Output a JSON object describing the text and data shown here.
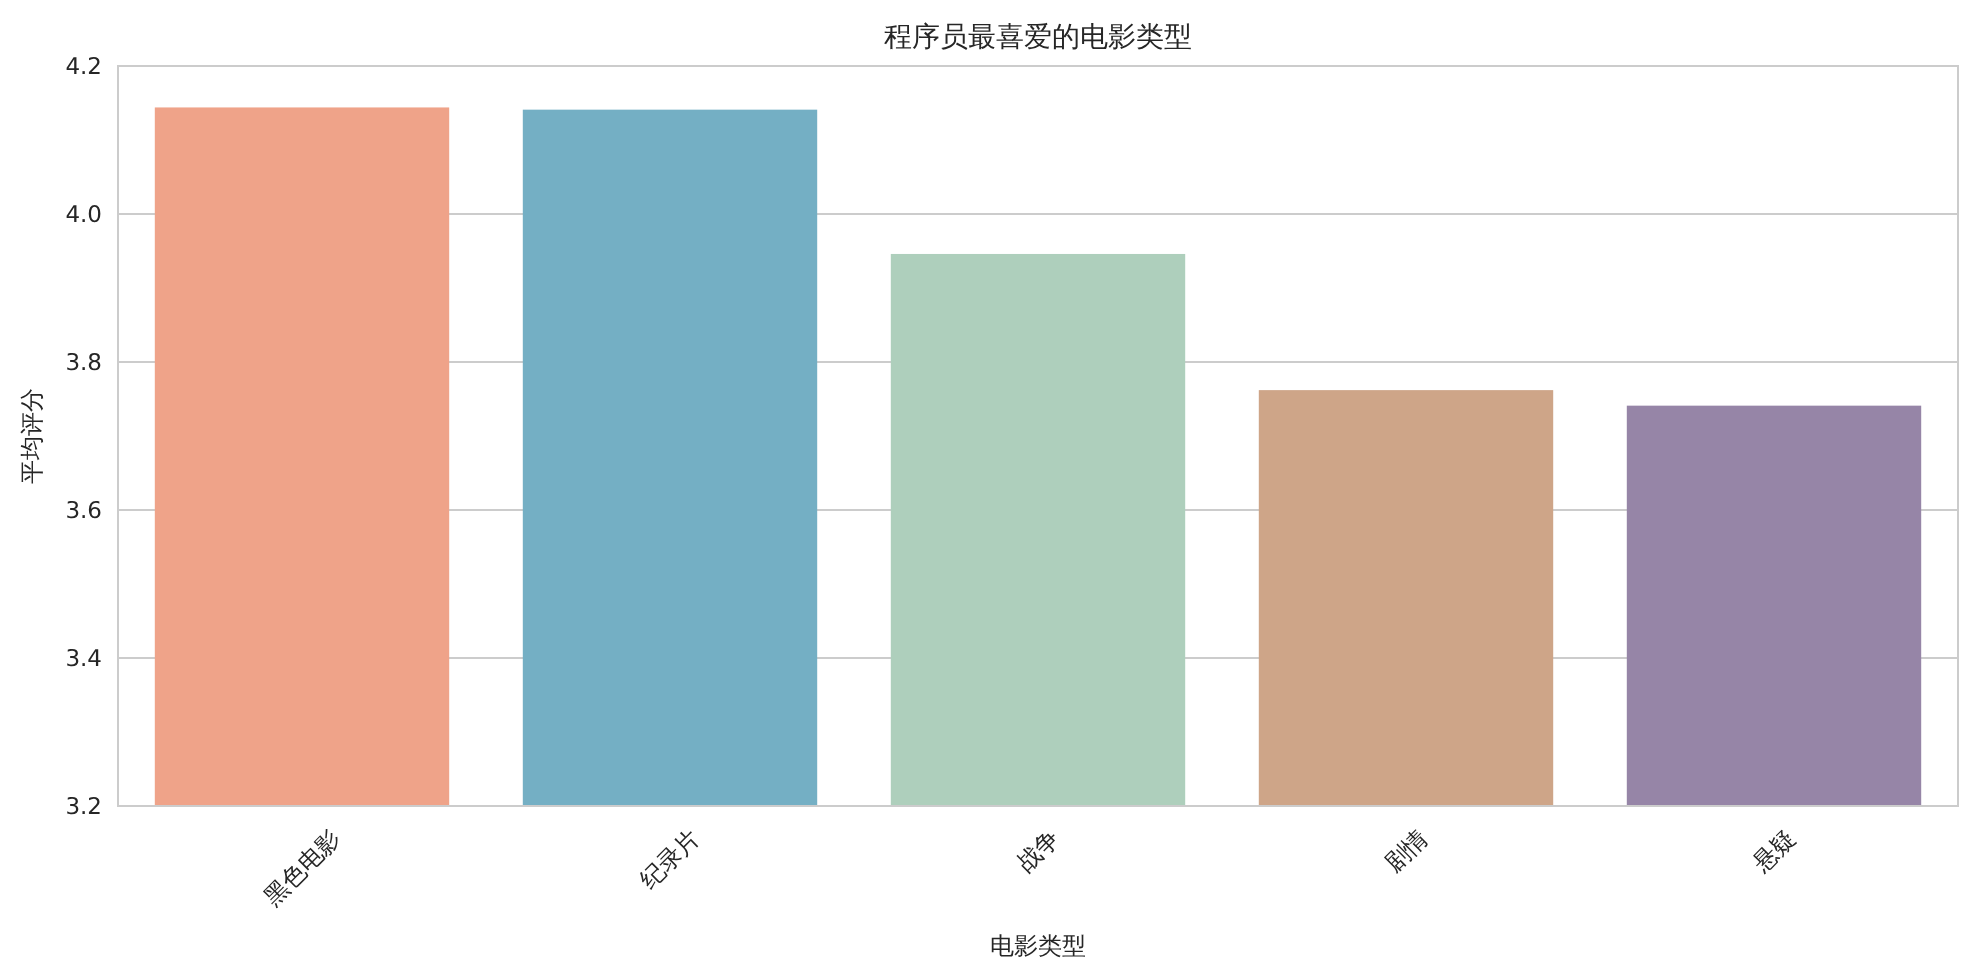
{
  "chart_data": {
    "type": "bar",
    "title": "程序员最喜爱的电影类型",
    "xlabel": "电影类型",
    "ylabel": "平均评分",
    "categories": [
      "黑色电影",
      "纪录片",
      "战争",
      "剧情",
      "悬疑"
    ],
    "values": [
      4.144,
      4.141,
      3.946,
      3.762,
      3.741
    ],
    "colors": [
      "#efa389",
      "#74afc4",
      "#aecfbc",
      "#cea588",
      "#9685a7"
    ],
    "ylim": [
      3.2,
      4.2
    ],
    "yticks": [
      {
        "value": 3.2,
        "label": "3.2"
      },
      {
        "value": 3.4,
        "label": "3.4"
      },
      {
        "value": 3.6,
        "label": "3.6"
      },
      {
        "value": 3.8,
        "label": "3.8"
      },
      {
        "value": 4.0,
        "label": "4.0"
      },
      {
        "value": 4.2,
        "label": "4.2"
      }
    ],
    "grid": "y"
  }
}
